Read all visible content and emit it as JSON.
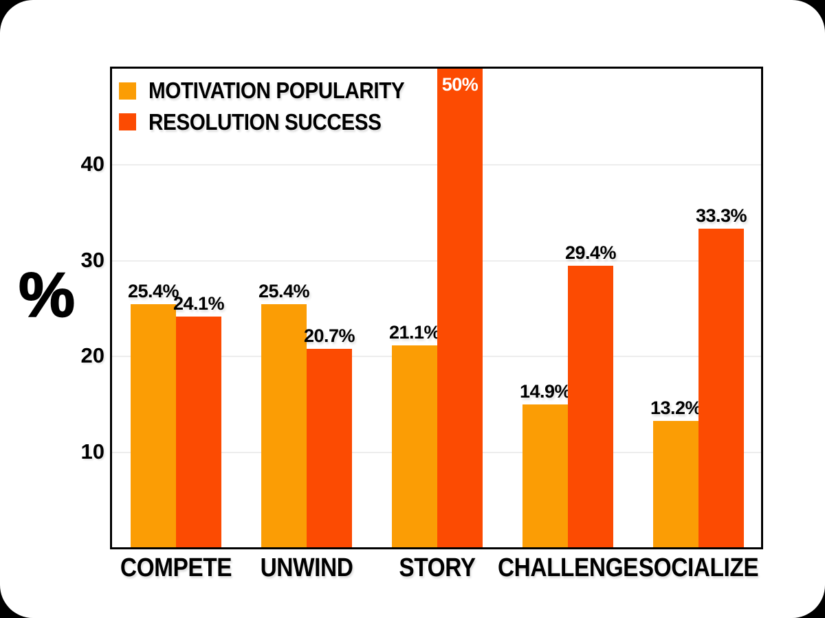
{
  "page": {
    "background": "#000000",
    "card_background": "#ffffff",
    "text_color": "#000000",
    "gridline_color": "#ededed",
    "frame_border_color": "#000000"
  },
  "chart_data": {
    "type": "bar",
    "categories": [
      "COMPETE",
      "UNWIND",
      "STORY",
      "CHALLENGE",
      "SOCIALIZE"
    ],
    "series": [
      {
        "name": "MOTIVATION POPULARITY",
        "color": "#FB9D05",
        "values": [
          25.4,
          25.4,
          21.1,
          14.9,
          13.2
        ],
        "labels": [
          "25.4%",
          "25.4%",
          "21.1%",
          "14.9%",
          "13.2%"
        ]
      },
      {
        "name": "RESOLUTION SUCCESS",
        "color": "#FC4B02",
        "values": [
          24.1,
          20.7,
          50,
          29.4,
          33.3
        ],
        "labels": [
          "24.1%",
          "20.7%",
          "50%",
          "29.4%",
          "33.3%"
        ]
      }
    ],
    "title": "",
    "xlabel": "",
    "ylabel": "%",
    "yticks": [
      10,
      20,
      30,
      40
    ],
    "ylim": [
      0,
      50
    ],
    "grid": true,
    "legend_position": "top-left-inside"
  }
}
